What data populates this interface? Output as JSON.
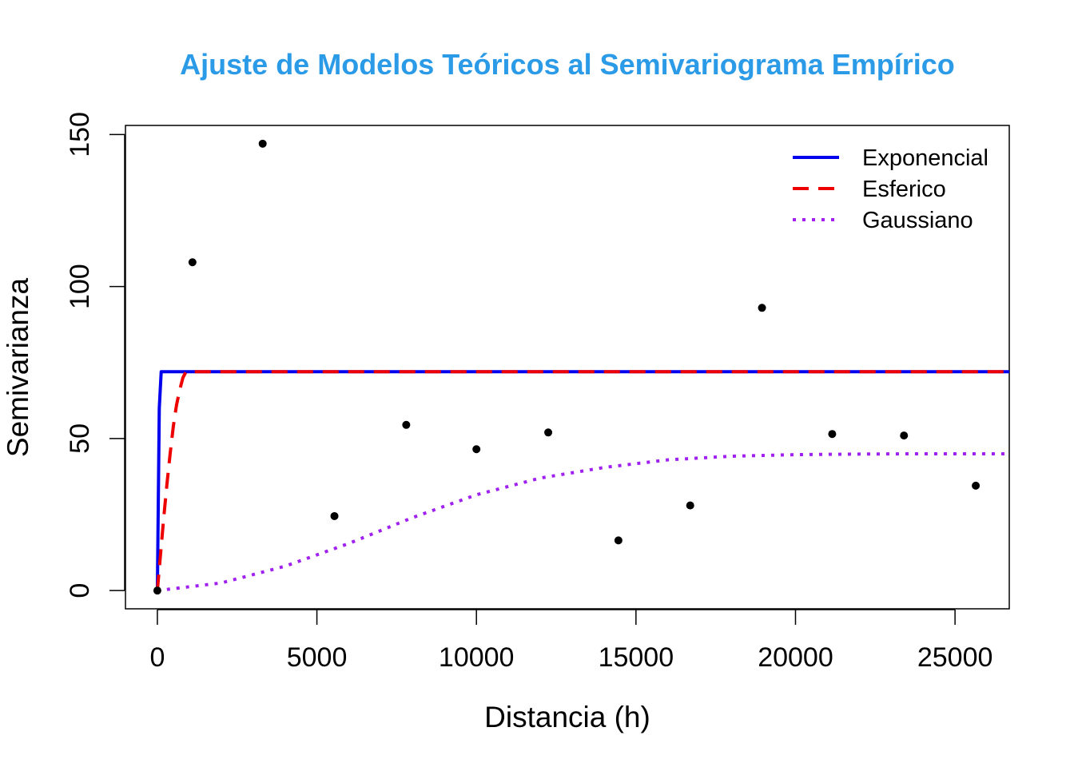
{
  "chart_data": {
    "type": "scatter",
    "title": "Ajuste de Modelos Teóricos al Semivariograma Empírico",
    "xlabel": "Distancia (h)",
    "ylabel": "Semivarianza",
    "xlim": [
      -1000,
      26700
    ],
    "ylim": [
      -6,
      153
    ],
    "x_ticks": [
      0,
      5000,
      10000,
      15000,
      20000,
      25000
    ],
    "y_ticks": [
      0,
      50,
      100,
      150
    ],
    "title_color": "#2B9BE8",
    "grid": false,
    "legend_position": "top-right",
    "points": {
      "color": "#000000",
      "x": [
        0,
        1100,
        3300,
        5550,
        7800,
        10000,
        12250,
        14450,
        16700,
        18950,
        21150,
        23400,
        25650
      ],
      "y": [
        0,
        108,
        147,
        24.5,
        54.5,
        46.5,
        52,
        16.5,
        28,
        93,
        51.5,
        51,
        34.5
      ]
    },
    "series": [
      {
        "name": "Exponencial",
        "model": "exponential",
        "color": "#0000EE",
        "dash": "solid",
        "x": [
          0,
          60,
          120,
          180,
          240,
          300,
          26700
        ],
        "y": [
          0,
          60,
          72,
          72,
          72,
          72,
          72
        ]
      },
      {
        "name": "Esferico",
        "model": "spherical",
        "color": "#EE0000",
        "dash": "dashed",
        "x": [
          0,
          100,
          200,
          300,
          400,
          500,
          600,
          700,
          800,
          900,
          26700
        ],
        "y": [
          0,
          12,
          24,
          35,
          45,
          54,
          61,
          66,
          70,
          72,
          72
        ]
      },
      {
        "name": "Gaussiano",
        "model": "gaussian",
        "color": "#A020F0",
        "dash": "dotted",
        "x": [
          0,
          2000,
          4000,
          6000,
          8000,
          10000,
          12000,
          14000,
          16000,
          18000,
          20000,
          22000,
          24000,
          26700
        ],
        "y": [
          0,
          2.5,
          8,
          15.5,
          24,
          31.5,
          37,
          40.5,
          43,
          44.2,
          44.7,
          44.9,
          45,
          45
        ]
      }
    ]
  }
}
